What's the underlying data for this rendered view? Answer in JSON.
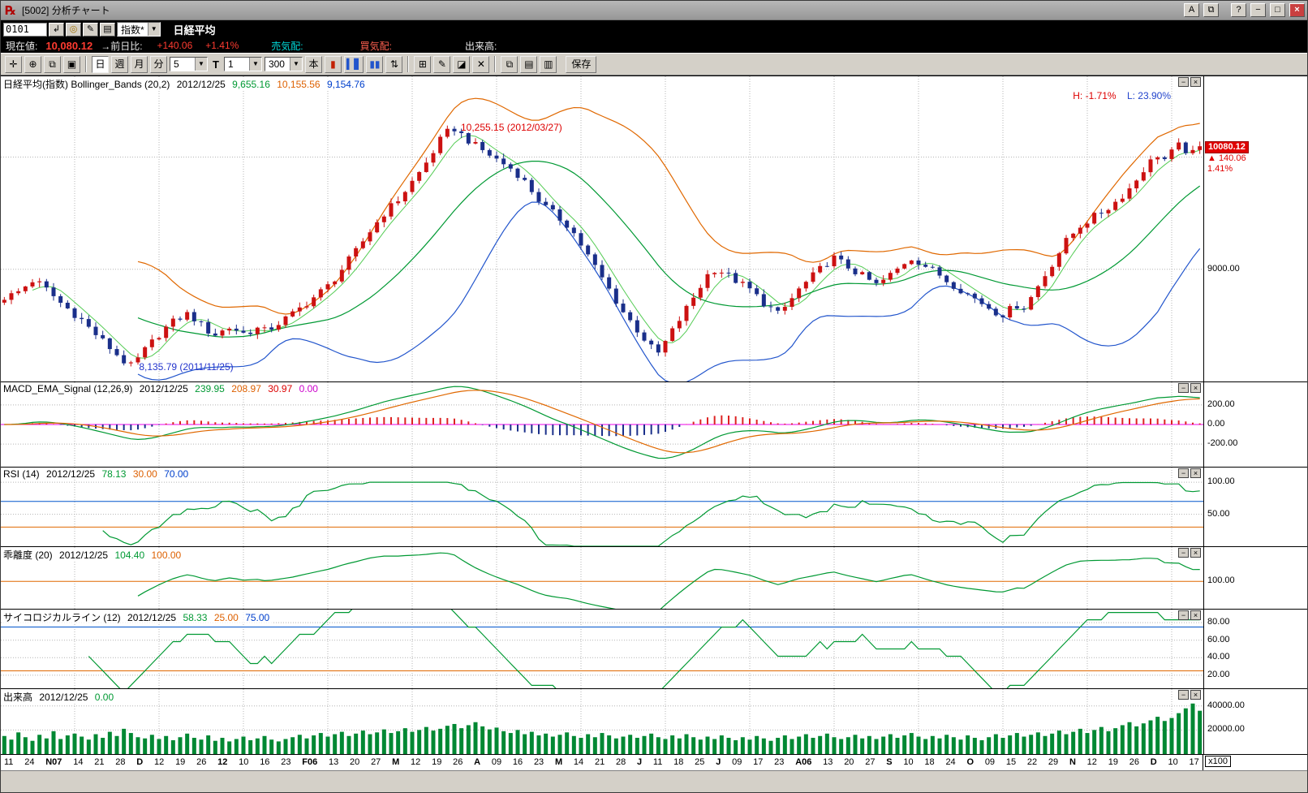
{
  "window": {
    "title": "[5002] 分析チャート"
  },
  "icons": {
    "logo": "℞",
    "window_a": "A",
    "window_copy": "⧉",
    "help": "?",
    "minimize": "−",
    "maximize": "□",
    "close": "×",
    "enter": "↲",
    "find": "◎",
    "edit": "✎",
    "list": "▤",
    "combo_arrow": "▼",
    "pan": "✛",
    "zoom": "⊕",
    "copy_chart": "⧉",
    "new_window": "▣",
    "candle": "▮",
    "bars": "▍▋",
    "bars2": "▮▮",
    "updown": "⇅",
    "grid": "⊞",
    "pencil": "✎",
    "eraser": "◪",
    "cut": "✕",
    "sheet": "▤",
    "sheet2": "▥",
    "panel_min": "−",
    "panel_close": "×"
  },
  "toolbar1": {
    "code_value": "0101",
    "index_select": "指数*",
    "symbol": "日経平均"
  },
  "info_bar": {
    "label_current": "現在値:",
    "current": "10,080.12",
    "label_change": "→前日比:",
    "change": "+140.06",
    "change_pct": "+1.41%",
    "label_ask": "売気配:",
    "label_bid": "買気配:",
    "label_volume": "出来高:"
  },
  "toolbar2": {
    "periods": [
      "日",
      "週",
      "月",
      "分"
    ],
    "minute": "5",
    "t": "T",
    "count": "1",
    "bars": "300",
    "hon": "本",
    "save": "保存"
  },
  "panel_headers": {
    "price": {
      "title": "日経平均(指数) Bollinger_Bands (20,2)",
      "date": "2012/12/25",
      "v1": "9,655.16",
      "v2": "10,155.56",
      "v3": "9,154.76"
    },
    "macd": {
      "title": "MACD_EMA_Signal (12,26,9)",
      "date": "2012/12/25",
      "v1": "239.95",
      "v2": "208.97",
      "v3": "30.97",
      "v4": "0.00"
    },
    "rsi": {
      "title": "RSI (14)",
      "date": "2012/12/25",
      "v1": "78.13",
      "v2": "30.00",
      "v3": "70.00"
    },
    "kairi": {
      "title": "乖離度 (20)",
      "date": "2012/12/25",
      "v1": "104.40",
      "v2": "100.00"
    },
    "psych": {
      "title": "サイコロジカルライン (12)",
      "date": "2012/12/25",
      "v1": "58.33",
      "v2": "25.00",
      "v3": "75.00"
    },
    "volume": {
      "title": "出来高",
      "date": "2012/12/25",
      "v1": "0.00"
    }
  },
  "chart_data": {
    "type": "candlestick+indicators",
    "symbol": "日経平均(指数)",
    "as_of": "2012/12/25",
    "colors": {
      "up_candle": "#cc1111",
      "down_candle": "#1a2f8a",
      "boll_mid": "#009933",
      "boll_upper": "#e06800",
      "boll_lower": "#2255cc",
      "sma5": "#55cc55",
      "macd": "#009933",
      "signal": "#e06800",
      "osc_pos": "#dd2222",
      "osc_neg": "#1a2f8a",
      "zero": "#ee00ee",
      "volume": "#008833"
    },
    "price": {
      "ylim": [
        8000,
        10720
      ],
      "gridlines": [
        10000,
        9000
      ],
      "axis_labels": [
        {
          "t": "9000.00",
          "v": 9000
        }
      ],
      "bollinger": {
        "period": 20,
        "dev": 2,
        "mid": 9655.16,
        "upper": 10155.56,
        "lower": 9154.76
      },
      "high_annotation": {
        "text": "10,255.15 (2012/03/27)",
        "value": 10255.15,
        "index": 64
      },
      "low_annotation": {
        "text": "8,135.79 (2011/11/25)",
        "value": 8135.79,
        "index": 18
      },
      "hl_readout": {
        "h": "H: -1.71%",
        "l": "L: 23.90%"
      },
      "current": {
        "price": "10080.12",
        "change_text": "▲ 140.06",
        "pct": "1.41%",
        "value": 10080.12
      },
      "close": [
        8750,
        8770,
        8800,
        8850,
        8900,
        8870,
        8820,
        8760,
        8700,
        8650,
        8600,
        8550,
        8480,
        8420,
        8360,
        8300,
        8240,
        8180,
        8136,
        8200,
        8280,
        8350,
        8420,
        8480,
        8530,
        8570,
        8600,
        8560,
        8500,
        8450,
        8420,
        8450,
        8480,
        8460,
        8430,
        8450,
        8470,
        8450,
        8480,
        8520,
        8560,
        8600,
        8650,
        8700,
        8750,
        8800,
        8850,
        8920,
        9000,
        9080,
        9160,
        9250,
        9340,
        9420,
        9500,
        9560,
        9620,
        9700,
        9780,
        9860,
        9950,
        10050,
        10150,
        10220,
        10255,
        10200,
        10150,
        10100,
        10060,
        10020,
        9980,
        9940,
        9900,
        9850,
        9780,
        9700,
        9620,
        9550,
        9500,
        9450,
        9400,
        9320,
        9220,
        9120,
        9020,
        8920,
        8820,
        8720,
        8620,
        8540,
        8460,
        8380,
        8300,
        8250,
        8350,
        8450,
        8550,
        8650,
        8750,
        8850,
        8950,
        9000,
        8980,
        8940,
        8900,
        8860,
        8820,
        8760,
        8700,
        8650,
        8600,
        8660,
        8740,
        8820,
        8880,
        8940,
        9000,
        9060,
        9100,
        9060,
        9020,
        8980,
        8940,
        8900,
        8860,
        8900,
        8950,
        9000,
        9060,
        9100,
        9070,
        9030,
        8990,
        8950,
        8900,
        8860,
        8820,
        8780,
        8740,
        8700,
        8660,
        8620,
        8600,
        8640,
        8680,
        8661,
        8750,
        8850,
        8950,
        9050,
        9150,
        9250,
        9320,
        9390,
        9430,
        9470,
        9510,
        9550,
        9600,
        9660,
        9720,
        9800,
        9890,
        9960,
        10020,
        9980,
        10040,
        10100,
        10060,
        10030,
        10080
      ]
    },
    "macd": {
      "params": "(12,26,9)",
      "macd": 239.95,
      "signal": 208.97,
      "osc": 30.97,
      "zero": 0.0,
      "ylim": [
        -430,
        430
      ],
      "gridlines": [
        200,
        -200
      ],
      "axis_labels": [
        {
          "t": "200.00",
          "v": 200
        },
        {
          "t": "0.00",
          "v": 0
        },
        {
          "t": "-200.00",
          "v": -200
        }
      ]
    },
    "rsi": {
      "period": 14,
      "value": 78.13,
      "lower": 30,
      "upper": 70,
      "ylim": [
        0,
        123
      ],
      "gridlines": [
        100,
        50
      ],
      "axis_labels": [
        {
          "t": "100.00",
          "v": 100
        },
        {
          "t": "50.00",
          "v": 50
        }
      ]
    },
    "kairi": {
      "period": 20,
      "value": 104.4,
      "base": 100.0,
      "ylim": [
        92,
        110
      ],
      "gridlines": [],
      "axis_labels": [
        {
          "t": "100.00",
          "v": 100
        }
      ]
    },
    "psych": {
      "period": 12,
      "value": 58.33,
      "lower": 25,
      "upper": 75,
      "ylim": [
        5,
        95
      ],
      "gridlines": [
        80,
        60,
        40,
        20
      ],
      "axis_labels": [
        {
          "t": "80.00",
          "v": 80
        },
        {
          "t": "60.00",
          "v": 60
        },
        {
          "t": "40.00",
          "v": 40
        },
        {
          "t": "20.00",
          "v": 20
        }
      ]
    },
    "volume": {
      "value": "0.00",
      "unit": "x100",
      "ylim": [
        0,
        54000
      ],
      "gridlines": [
        40000,
        20000
      ],
      "axis_labels": [
        {
          "t": "40000.00",
          "v": 40000
        },
        {
          "t": "20000.00",
          "v": 20000
        }
      ],
      "values": [
        15000,
        12000,
        18000,
        14000,
        11000,
        16000,
        13000,
        19000,
        12500,
        15500,
        17000,
        14500,
        12000,
        16500,
        13500,
        18500,
        15000,
        21000,
        17500,
        14000,
        13000,
        16000,
        12500,
        15000,
        11500,
        14000,
        17000,
        13500,
        12000,
        15500,
        11000,
        13500,
        10500,
        12500,
        14500,
        11500,
        13000,
        15000,
        12000,
        10500,
        12500,
        14000,
        16000,
        13000,
        15500,
        17500,
        14500,
        16500,
        18500,
        15000,
        17000,
        19500,
        16500,
        18000,
        20500,
        17500,
        19000,
        21500,
        18500,
        20000,
        22500,
        19500,
        21000,
        23500,
        25000,
        21500,
        24000,
        26500,
        23000,
        20500,
        22000,
        19000,
        17500,
        20000,
        16500,
        18500,
        15500,
        17000,
        14500,
        16000,
        18000,
        15000,
        13500,
        16500,
        14000,
        17500,
        15500,
        13000,
        14500,
        16000,
        13500,
        15000,
        17000,
        14000,
        12500,
        15500,
        13000,
        16500,
        14000,
        12000,
        14500,
        12500,
        15500,
        13500,
        11500,
        14000,
        12000,
        15000,
        13000,
        11000,
        13500,
        15500,
        12500,
        14500,
        16500,
        13500,
        15000,
        17000,
        14000,
        12500,
        14000,
        16000,
        13000,
        15000,
        12500,
        14500,
        16500,
        13500,
        15500,
        17500,
        14500,
        12500,
        15000,
        13000,
        16000,
        14000,
        12000,
        15500,
        13500,
        11500,
        14000,
        16500,
        13500,
        15500,
        17500,
        14500,
        16000,
        18000,
        15000,
        17000,
        19500,
        16500,
        18500,
        21000,
        17500,
        20000,
        22500,
        19000,
        21500,
        24000,
        26500,
        23000,
        25500,
        28000,
        31000,
        27500,
        30000,
        34000,
        38000,
        42000,
        36000
      ]
    },
    "x_labels": [
      "11",
      "24",
      "N07",
      "14",
      "21",
      "28",
      "D",
      "12",
      "19",
      "26",
      "12",
      "10",
      "16",
      "23",
      "F06",
      "13",
      "20",
      "27",
      "M",
      "12",
      "19",
      "26",
      "A",
      "09",
      "16",
      "23",
      "M",
      "14",
      "21",
      "28",
      "J",
      "11",
      "18",
      "25",
      "J",
      "09",
      "17",
      "23",
      "A06",
      "13",
      "20",
      "27",
      "S",
      "10",
      "18",
      "24",
      "O",
      "09",
      "15",
      "22",
      "29",
      "N",
      "12",
      "19",
      "26",
      "D",
      "10",
      "17"
    ],
    "x_label_bold": [
      2,
      6,
      10,
      14,
      18,
      22,
      26,
      30,
      34,
      38,
      42,
      46,
      51,
      55
    ],
    "month_indices": [
      10,
      22,
      34,
      46,
      58,
      70,
      82,
      94,
      106,
      118,
      130,
      142,
      154,
      166
    ]
  }
}
